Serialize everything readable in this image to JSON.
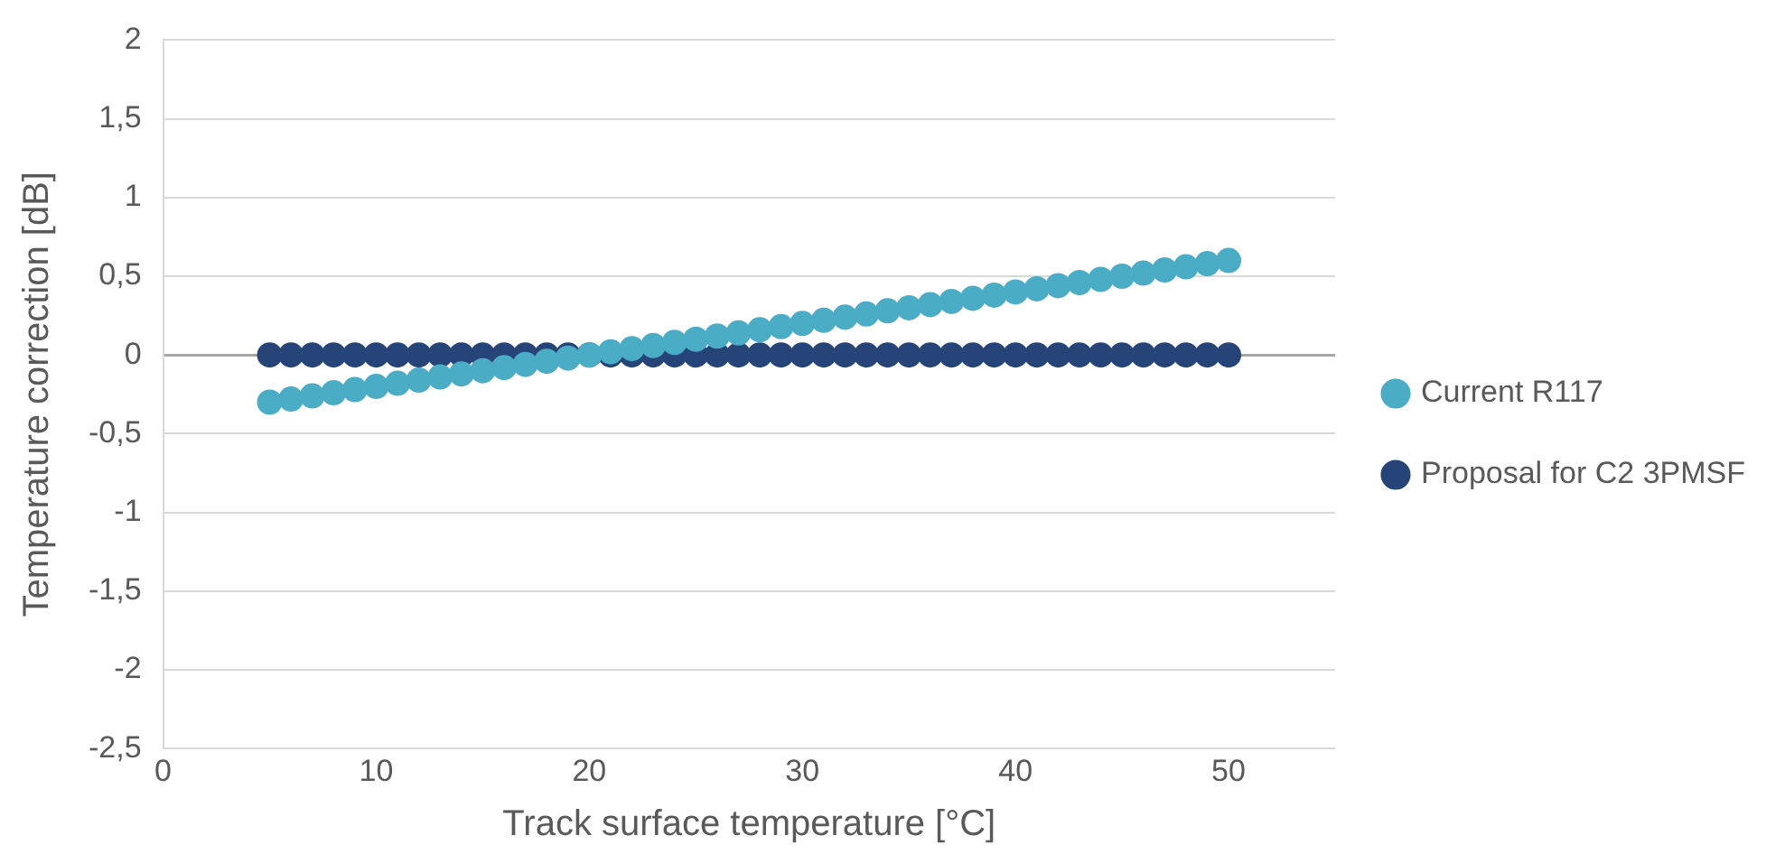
{
  "chart_data": {
    "type": "scatter",
    "xlabel": "Track surface temperature [°C]",
    "ylabel": "Temperature correction [dB]",
    "x": [
      5,
      6,
      7,
      8,
      9,
      10,
      11,
      12,
      13,
      14,
      15,
      16,
      17,
      18,
      19,
      20,
      21,
      22,
      23,
      24,
      25,
      26,
      27,
      28,
      29,
      30,
      31,
      32,
      33,
      34,
      35,
      36,
      37,
      38,
      39,
      40,
      41,
      42,
      43,
      44,
      45,
      46,
      47,
      48,
      49,
      50
    ],
    "series": [
      {
        "name": "Current R117",
        "color": "#4bacc6",
        "values": [
          -0.3,
          -0.28,
          -0.26,
          -0.24,
          -0.22,
          -0.2,
          -0.18,
          -0.16,
          -0.14,
          -0.12,
          -0.1,
          -0.08,
          -0.06,
          -0.04,
          -0.02,
          0,
          0.02,
          0.04,
          0.06,
          0.08,
          0.1,
          0.12,
          0.14,
          0.16,
          0.18,
          0.2,
          0.22,
          0.24,
          0.26,
          0.28,
          0.3,
          0.32,
          0.34,
          0.36,
          0.38,
          0.4,
          0.42,
          0.44,
          0.46,
          0.48,
          0.5,
          0.52,
          0.54,
          0.56,
          0.58,
          0.6
        ]
      },
      {
        "name": "Proposal for C2 3PMSF",
        "color": "#264478",
        "values": [
          0,
          0,
          0,
          0,
          0,
          0,
          0,
          0,
          0,
          0,
          0,
          0,
          0,
          0,
          0,
          0,
          0,
          0,
          0,
          0,
          0,
          0,
          0,
          0,
          0,
          0,
          0,
          0,
          0,
          0,
          0,
          0,
          0,
          0,
          0,
          0,
          0,
          0,
          0,
          0,
          0,
          0,
          0,
          0,
          0,
          0
        ]
      }
    ],
    "xlim": [
      0,
      55
    ],
    "xticks": [
      0,
      10,
      20,
      30,
      40,
      50
    ],
    "ylim": [
      -2.5,
      2
    ],
    "yticks": [
      {
        "value": -2.5,
        "label": "-2,5"
      },
      -2,
      {
        "value": -1.5,
        "label": "-1,5"
      },
      -1,
      {
        "value": -0.5,
        "label": "-0,5"
      },
      0,
      {
        "value": 0.5,
        "label": "0,5"
      },
      1,
      {
        "value": 1.5,
        "label": "1,5"
      },
      2
    ],
    "grid": "y",
    "legend": "right",
    "marker": "circle"
  }
}
